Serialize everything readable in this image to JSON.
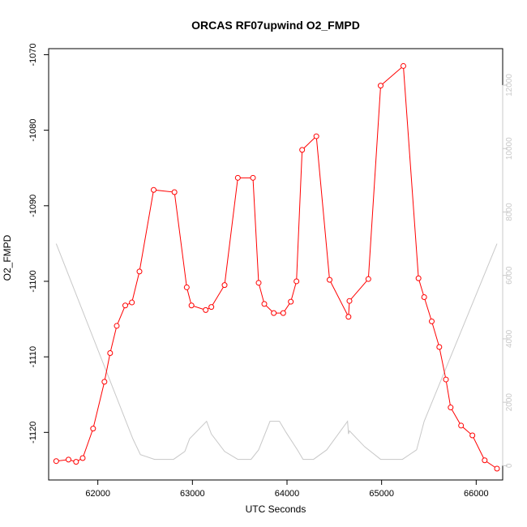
{
  "chart_data": {
    "type": "line",
    "title": "ORCAS RF07upwind O2_FMPD",
    "xlabel": "UTC Seconds",
    "ylabel": "O2_FMPD",
    "xlim": [
      61480,
      66280
    ],
    "ylim": [
      -1126.3,
      -1069.2
    ],
    "y2lim": [
      -450,
      13150
    ],
    "x_ticks": [
      62000,
      63000,
      64000,
      65000,
      66000
    ],
    "y_ticks": [
      -1070,
      -1080,
      -1090,
      -1100,
      -1110,
      -1120
    ],
    "y2_ticks": [
      0,
      2000,
      4000,
      6000,
      8000,
      10000,
      12000
    ],
    "grid": false,
    "series": [
      {
        "axis": "left",
        "color": "#ff0000",
        "markers": "open-circle",
        "x": [
          61560,
          61690,
          61770,
          61840,
          61950,
          62070,
          62130,
          62200,
          62290,
          62360,
          62440,
          62590,
          62810,
          62940,
          62990,
          63140,
          63200,
          63340,
          63480,
          63640,
          63700,
          63760,
          63860,
          63960,
          64040,
          64100,
          64160,
          64310,
          64450,
          64650,
          64660,
          64860,
          64990,
          65230,
          65390,
          65450,
          65530,
          65610,
          65680,
          65730,
          65840,
          65960,
          66090,
          66220
        ],
        "y": [
          -1123.8,
          -1123.6,
          -1123.9,
          -1123.4,
          -1119.5,
          -1113.3,
          -1109.5,
          -1105.9,
          -1103.2,
          -1102.8,
          -1098.7,
          -1087.9,
          -1088.2,
          -1100.8,
          -1103.2,
          -1103.8,
          -1103.4,
          -1100.5,
          -1086.3,
          -1086.3,
          -1100.2,
          -1103.0,
          -1104.2,
          -1104.2,
          -1102.7,
          -1100.0,
          -1082.6,
          -1080.8,
          -1099.8,
          -1104.7,
          -1102.6,
          -1099.7,
          -1074.1,
          -1071.5,
          -1099.6,
          -1102.1,
          -1105.3,
          -1108.7,
          -1113.0,
          -1116.7,
          -1119.1,
          -1120.4,
          -1123.7,
          -1124.8
        ]
      },
      {
        "axis": "right",
        "color": "#c8c8c8",
        "markers": "none",
        "x": [
          61560,
          62370,
          62450,
          62600,
          62800,
          62920,
          62970,
          63150,
          63200,
          63340,
          63480,
          63620,
          63700,
          63820,
          63920,
          63990,
          64110,
          64170,
          64280,
          64420,
          64640,
          64650,
          64660,
          64820,
          64990,
          65220,
          65370,
          65450,
          66220
        ],
        "y": [
          7000,
          850,
          350,
          200,
          200,
          450,
          850,
          1400,
          1000,
          450,
          200,
          200,
          500,
          1400,
          1400,
          1050,
          500,
          200,
          200,
          500,
          1400,
          1000,
          1100,
          600,
          200,
          200,
          500,
          1400,
          7000
        ]
      }
    ]
  }
}
